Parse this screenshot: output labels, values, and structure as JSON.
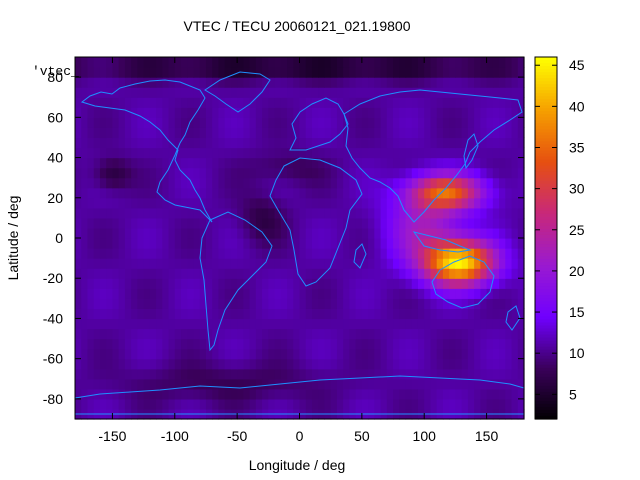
{
  "chart_data": {
    "type": "heatmap",
    "title": "VTEC / TECU 20060121_021.19800",
    "xlabel": "Longitude / deg",
    "ylabel": "Latitude / deg",
    "key_label": "'vtec_",
    "xlim": [
      -180,
      180
    ],
    "ylim": [
      -90,
      90
    ],
    "xticks": [
      {
        "value": -150,
        "label": "-150"
      },
      {
        "value": -100,
        "label": "-100"
      },
      {
        "value": -50,
        "label": "-50"
      },
      {
        "value": 0,
        "label": "0"
      },
      {
        "value": 50,
        "label": "50"
      },
      {
        "value": 100,
        "label": "100"
      },
      {
        "value": 150,
        "label": "150"
      }
    ],
    "yticks": [
      {
        "value": -80,
        "label": "-80"
      },
      {
        "value": -60,
        "label": "-60"
      },
      {
        "value": -40,
        "label": "-40"
      },
      {
        "value": -20,
        "label": "-20"
      },
      {
        "value": 0,
        "label": "0"
      },
      {
        "value": 20,
        "label": "20"
      },
      {
        "value": 40,
        "label": "40"
      },
      {
        "value": 60,
        "label": "60"
      },
      {
        "value": 80,
        "label": "80"
      }
    ],
    "colorbar": {
      "min": 2,
      "max": 46,
      "ticks": [
        {
          "value": 5,
          "label": "5"
        },
        {
          "value": 10,
          "label": "10"
        },
        {
          "value": 15,
          "label": "15"
        },
        {
          "value": 20,
          "label": "20"
        },
        {
          "value": 25,
          "label": "25"
        },
        {
          "value": 30,
          "label": "30"
        },
        {
          "value": 35,
          "label": "35"
        },
        {
          "value": 40,
          "label": "40"
        },
        {
          "value": 45,
          "label": "45"
        }
      ]
    },
    "field": {
      "background": 11,
      "peaks": [
        {
          "lon": 128,
          "lat": -12,
          "amp": 33,
          "sig_lon": 28,
          "sig_lat": 11
        },
        {
          "lon": 118,
          "lat": 23,
          "amp": 22,
          "sig_lon": 30,
          "sig_lat": 9
        },
        {
          "lon": 100,
          "lat": 5,
          "amp": 10,
          "sig_lon": 30,
          "sig_lat": 18
        }
      ],
      "lows": [
        {
          "lon": -150,
          "lat": 32,
          "amp": -5,
          "sig_lon": 15,
          "sig_lat": 8
        },
        {
          "lon": -30,
          "lat": 10,
          "amp": -4,
          "sig_lon": 18,
          "sig_lat": 12
        },
        {
          "lon": -10,
          "lat": 35,
          "amp": -3,
          "sig_lon": 30,
          "sig_lat": 8
        },
        {
          "lon": 0,
          "lat": 85,
          "amp": -6,
          "sig_lon": 200,
          "sig_lat": 6
        },
        {
          "lon": -60,
          "lat": -72,
          "amp": -3,
          "sig_lon": 80,
          "sig_lat": 10
        }
      ]
    }
  },
  "colors": {
    "coastline": "#1e90ff",
    "frame": "#000000",
    "palette": [
      "#000000",
      "#3a005a",
      "#7000ff",
      "#9a1ad0",
      "#c8287a",
      "#e65010",
      "#f6a000",
      "#ffff00"
    ]
  }
}
